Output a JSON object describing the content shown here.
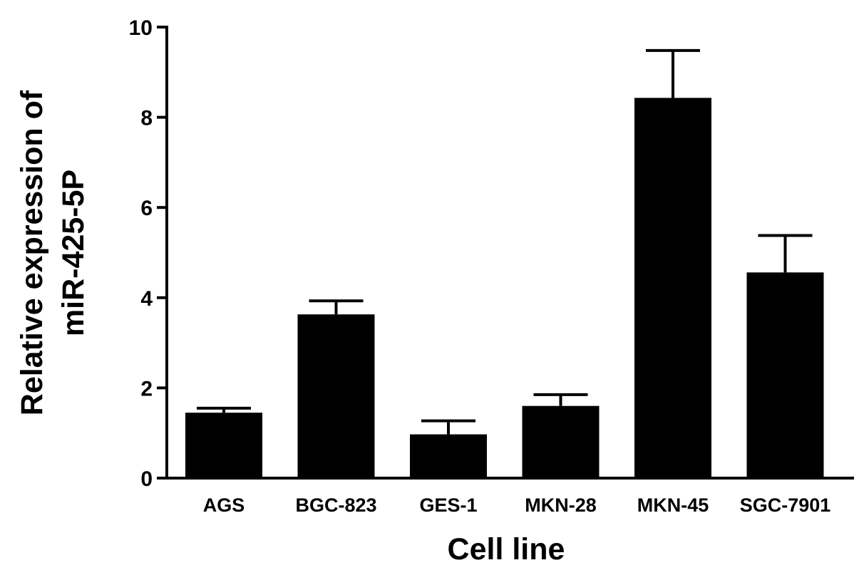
{
  "chart_data": {
    "type": "bar",
    "categories": [
      "AGS",
      "BGC-823",
      "GES-1",
      "MKN-28",
      "MKN-45",
      "SGC-7901"
    ],
    "values": [
      1.45,
      3.63,
      0.97,
      1.6,
      8.43,
      4.56
    ],
    "errors": [
      0.1,
      0.3,
      0.3,
      0.25,
      1.05,
      0.82
    ],
    "xlabel": "Cell line",
    "ylabel": [
      "Relative expression of",
      "miR-425-5P"
    ],
    "ylim": [
      0,
      10
    ],
    "yticks": [
      0,
      2,
      4,
      6,
      8,
      10
    ],
    "grid": false,
    "legend": "none",
    "bar_color": "#000000"
  }
}
